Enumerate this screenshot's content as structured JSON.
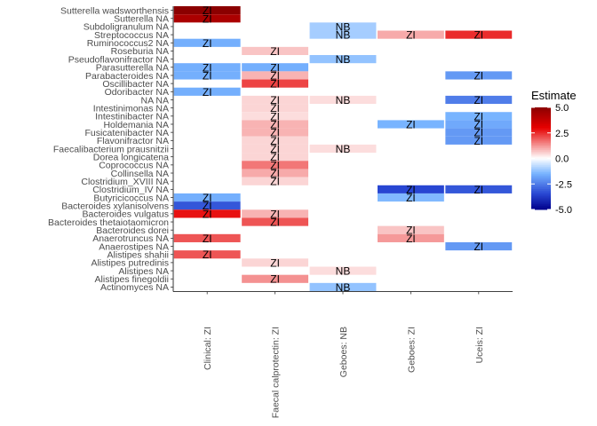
{
  "chart_data": {
    "type": "heatmap",
    "title": "",
    "xlabel": "",
    "ylabel": "",
    "columns": [
      "Clinical: ZI",
      "Faecal calprotectin: ZI",
      "Geboes: NB",
      "Geboes: ZI",
      "Uceis: ZI"
    ],
    "rows": [
      "Sutterella wadsworthensis",
      "Sutterella NA",
      "Subdoligranulum NA",
      "Streptococcus NA",
      "Ruminococcus2 NA",
      "Roseburia NA",
      "Pseudoflavonifractor NA",
      "Parasutterella NA",
      "Parabacteroides NA",
      "Oscillibacter NA",
      "Odoribacter NA",
      "NA NA",
      "Intestinimonas NA",
      "Intestinibacter NA",
      "Holdemania NA",
      "Fusicatenibacter NA",
      "Flavonifractor NA",
      "Faecalibacterium prausnitzii",
      "Dorea longicatena",
      "Coprococcus NA",
      "Collinsella NA",
      "Clostridium_XVIII NA",
      "Clostridium_IV NA",
      "Butyricicoccus NA",
      "Bacteroides xylanisolvens",
      "Bacteroides vulgatus",
      "Bacteroides thetaiotaomicron",
      "Bacteroides dorei",
      "Anaerotruncus NA",
      "Anaerostipes NA",
      "Alistipes shahii",
      "Alistipes putredinis",
      "Alistipes NA",
      "Alistipes finegoldii",
      "Actinomyces NA"
    ],
    "cells": [
      {
        "row": "Sutterella wadsworthensis",
        "col": "Clinical: ZI",
        "value": 5.0,
        "label": "ZI"
      },
      {
        "row": "Sutterella NA",
        "col": "Clinical: ZI",
        "value": 4.3,
        "label": "ZI"
      },
      {
        "row": "Subdoligranulum NA",
        "col": "Geboes: NB",
        "value": -1.0,
        "label": "NB"
      },
      {
        "row": "Streptococcus NA",
        "col": "Geboes: NB",
        "value": -1.0,
        "label": "NB"
      },
      {
        "row": "Streptococcus NA",
        "col": "Geboes: ZI",
        "value": 1.0,
        "label": "ZI"
      },
      {
        "row": "Streptococcus NA",
        "col": "Uceis: ZI",
        "value": 2.5,
        "label": "ZI"
      },
      {
        "row": "Ruminococcus2 NA",
        "col": "Clinical: ZI",
        "value": -1.6,
        "label": "ZI"
      },
      {
        "row": "Roseburia NA",
        "col": "Faecal calprotectin: ZI",
        "value": 0.7,
        "label": "ZI"
      },
      {
        "row": "Pseudoflavonifractor NA",
        "col": "Geboes: NB",
        "value": -1.2,
        "label": "NB"
      },
      {
        "row": "Parasutterella NA",
        "col": "Clinical: ZI",
        "value": -1.6,
        "label": "ZI"
      },
      {
        "row": "Parasutterella NA",
        "col": "Faecal calprotectin: ZI",
        "value": -1.6,
        "label": "ZI"
      },
      {
        "row": "Parabacteroides NA",
        "col": "Clinical: ZI",
        "value": -1.6,
        "label": "ZI"
      },
      {
        "row": "Parabacteroides NA",
        "col": "Faecal calprotectin: ZI",
        "value": 0.9,
        "label": "ZI"
      },
      {
        "row": "Parabacteroides NA",
        "col": "Uceis: ZI",
        "value": -2.0,
        "label": "ZI"
      },
      {
        "row": "Oscillibacter NA",
        "col": "Faecal calprotectin: ZI",
        "value": 2.2,
        "label": "ZI"
      },
      {
        "row": "Odoribacter NA",
        "col": "Clinical: ZI",
        "value": -1.6,
        "label": "ZI"
      },
      {
        "row": "NA NA",
        "col": "Faecal calprotectin: ZI",
        "value": 0.5,
        "label": "ZI"
      },
      {
        "row": "NA NA",
        "col": "Geboes: NB",
        "value": 0.4,
        "label": "NB"
      },
      {
        "row": "NA NA",
        "col": "Uceis: ZI",
        "value": -2.5,
        "label": "ZI"
      },
      {
        "row": "Intestinimonas NA",
        "col": "Faecal calprotectin: ZI",
        "value": 0.5,
        "label": "ZI"
      },
      {
        "row": "Intestinibacter NA",
        "col": "Faecal calprotectin: ZI",
        "value": 0.4,
        "label": "ZI"
      },
      {
        "row": "Intestinibacter NA",
        "col": "Uceis: ZI",
        "value": -1.5,
        "label": "ZI"
      },
      {
        "row": "Holdemania NA",
        "col": "Faecal calprotectin: ZI",
        "value": 0.9,
        "label": "ZI"
      },
      {
        "row": "Holdemania NA",
        "col": "Geboes: ZI",
        "value": -1.5,
        "label": "ZI"
      },
      {
        "row": "Holdemania NA",
        "col": "Uceis: ZI",
        "value": -1.7,
        "label": "ZI"
      },
      {
        "row": "Fusicatenibacter NA",
        "col": "Faecal calprotectin: ZI",
        "value": 0.9,
        "label": "ZI"
      },
      {
        "row": "Fusicatenibacter NA",
        "col": "Uceis: ZI",
        "value": -2.0,
        "label": "ZI"
      },
      {
        "row": "Flavonifractor NA",
        "col": "Faecal calprotectin: ZI",
        "value": 0.5,
        "label": "ZI"
      },
      {
        "row": "Flavonifractor NA",
        "col": "Uceis: ZI",
        "value": -2.0,
        "label": "ZI"
      },
      {
        "row": "Faecalibacterium prausnitzii",
        "col": "Faecal calprotectin: ZI",
        "value": 0.5,
        "label": "ZI"
      },
      {
        "row": "Faecalibacterium prausnitzii",
        "col": "Geboes: NB",
        "value": 0.4,
        "label": "NB"
      },
      {
        "row": "Dorea longicatena",
        "col": "Faecal calprotectin: ZI",
        "value": 0.5,
        "label": "ZI"
      },
      {
        "row": "Coprococcus NA",
        "col": "Faecal calprotectin: ZI",
        "value": 1.6,
        "label": "ZI"
      },
      {
        "row": "Collinsella NA",
        "col": "Faecal calprotectin: ZI",
        "value": 1.0,
        "label": "ZI"
      },
      {
        "row": "Clostridium_XVIII NA",
        "col": "Faecal calprotectin: ZI",
        "value": 0.5,
        "label": "ZI"
      },
      {
        "row": "Clostridium_IV NA",
        "col": "Geboes: ZI",
        "value": -3.5,
        "label": "ZI"
      },
      {
        "row": "Clostridium_IV NA",
        "col": "Uceis: ZI",
        "value": -3.2,
        "label": "ZI"
      },
      {
        "row": "Butyricicoccus NA",
        "col": "Clinical: ZI",
        "value": -1.6,
        "label": "ZI"
      },
      {
        "row": "Butyricicoccus NA",
        "col": "Geboes: ZI",
        "value": -1.4,
        "label": "ZI"
      },
      {
        "row": "Bacteroides xylanisolvens",
        "col": "Clinical: ZI",
        "value": -3.2,
        "label": "ZI"
      },
      {
        "row": "Bacteroides vulgatus",
        "col": "Clinical: ZI",
        "value": 2.8,
        "label": "ZI"
      },
      {
        "row": "Bacteroides vulgatus",
        "col": "Faecal calprotectin: ZI",
        "value": 0.9,
        "label": "ZI"
      },
      {
        "row": "Bacteroides thetaiotaomicron",
        "col": "Faecal calprotectin: ZI",
        "value": 2.0,
        "label": "ZI"
      },
      {
        "row": "Bacteroides dorei",
        "col": "Geboes: ZI",
        "value": 0.7,
        "label": "ZI"
      },
      {
        "row": "Anaerotruncus NA",
        "col": "Clinical: ZI",
        "value": 2.0,
        "label": "ZI"
      },
      {
        "row": "Anaerotruncus NA",
        "col": "Geboes: ZI",
        "value": 1.2,
        "label": "ZI"
      },
      {
        "row": "Anaerostipes NA",
        "col": "Uceis: ZI",
        "value": -2.0,
        "label": "ZI"
      },
      {
        "row": "Alistipes shahii",
        "col": "Clinical: ZI",
        "value": 2.0,
        "label": "ZI"
      },
      {
        "row": "Alistipes putredinis",
        "col": "Faecal calprotectin: ZI",
        "value": 0.5,
        "label": "ZI"
      },
      {
        "row": "Alistipes NA",
        "col": "Geboes: NB",
        "value": 0.4,
        "label": "NB"
      },
      {
        "row": "Alistipes finegoldii",
        "col": "Faecal calprotectin: ZI",
        "value": 1.3,
        "label": "ZI"
      },
      {
        "row": "Actinomyces NA",
        "col": "Geboes: NB",
        "value": -1.2,
        "label": "NB"
      }
    ],
    "legend": {
      "title": "Estimate",
      "ticks": [
        5.0,
        2.5,
        0.0,
        -2.5,
        -5.0
      ],
      "tick_labels": [
        "5.0",
        "2.5",
        "0.0",
        "-2.5",
        "-5.0"
      ],
      "range": [
        -5,
        5
      ],
      "colors": {
        "low": "#00008B",
        "mid": "#FFFFFF",
        "high": "#8B0000"
      },
      "placement": "right"
    }
  }
}
